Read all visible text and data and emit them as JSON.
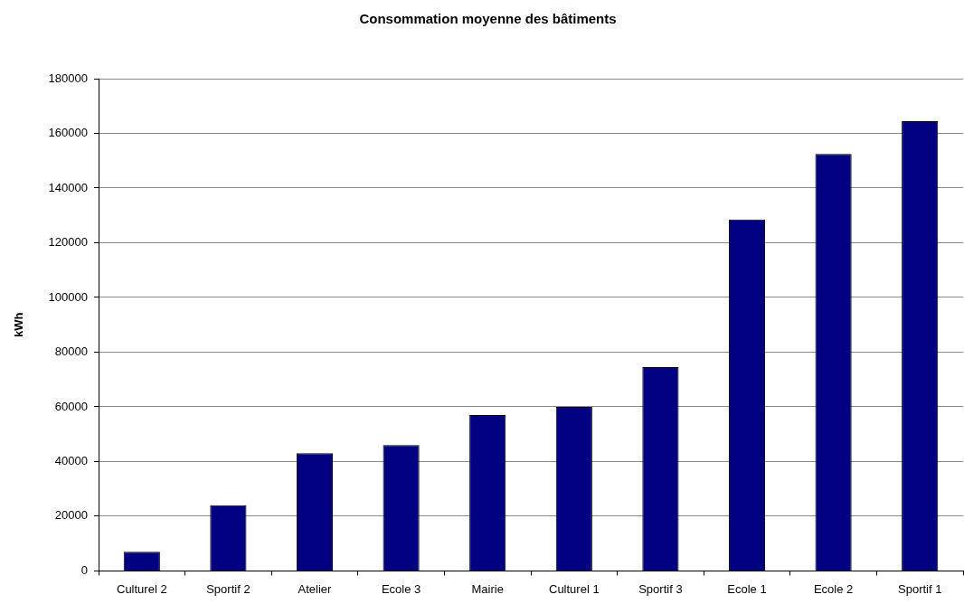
{
  "chart_data": {
    "type": "bar",
    "title": "Consommation moyenne des bâtiments",
    "ylabel": "kWh",
    "categories": [
      "Culturel 2",
      "Sportif 2",
      "Atelier",
      "Ecole 3",
      "Mairie",
      "Culturel 1",
      "Sportif 3",
      "Ecole 1",
      "Ecole 2",
      "Sportif 1"
    ],
    "values": [
      7000,
      24000,
      43000,
      46000,
      57000,
      60000,
      74500,
      128500,
      152500,
      164500
    ],
    "color": "#000080",
    "ylim": [
      0,
      180000
    ],
    "yticks": [
      0,
      20000,
      40000,
      60000,
      80000,
      100000,
      120000,
      140000,
      160000,
      180000
    ],
    "grid": "y"
  }
}
